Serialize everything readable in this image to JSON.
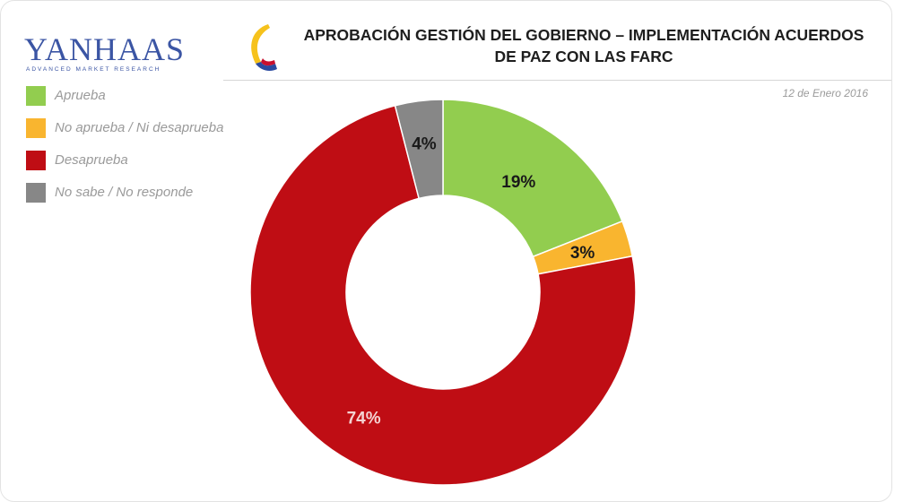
{
  "brand": {
    "logo_text": "YANHAAS",
    "logo_tagline": "ADVANCED MARKET RESEARCH"
  },
  "title_line1": "APROBACIÓN GESTIÓN DEL GOBIERNO – IMPLEMENTACIÓN ACUERDOS",
  "title_line2": "DE PAZ CON LAS FARC",
  "date": "12 de Enero 2016",
  "colors": {
    "aprueba": "#92cd4f",
    "neutral": "#f9b52f",
    "desaprueba": "#bf0d14",
    "no_sabe": "#878787",
    "label_dark": "#1a1a1a",
    "label_light": "#f4d2d2"
  },
  "chart_data": {
    "type": "pie",
    "donut": true,
    "title": "APROBACIÓN GESTIÓN DEL GOBIERNO – IMPLEMENTACIÓN ACUERDOS DE PAZ CON LAS FARC",
    "legend_position": "top-left",
    "start": "top, clockwise",
    "slices": [
      {
        "name": "Aprueba",
        "value": 19,
        "label": "19%",
        "color": "#92cd4f"
      },
      {
        "name": "No aprueba / Ni desaprueba",
        "value": 3,
        "label": "3%",
        "color": "#f9b52f"
      },
      {
        "name": "Desaprueba",
        "value": 74,
        "label": "74%",
        "color": "#bf0d14"
      },
      {
        "name": "No sabe  /  No responde",
        "value": 4,
        "label": "4%",
        "color": "#878787"
      }
    ]
  }
}
